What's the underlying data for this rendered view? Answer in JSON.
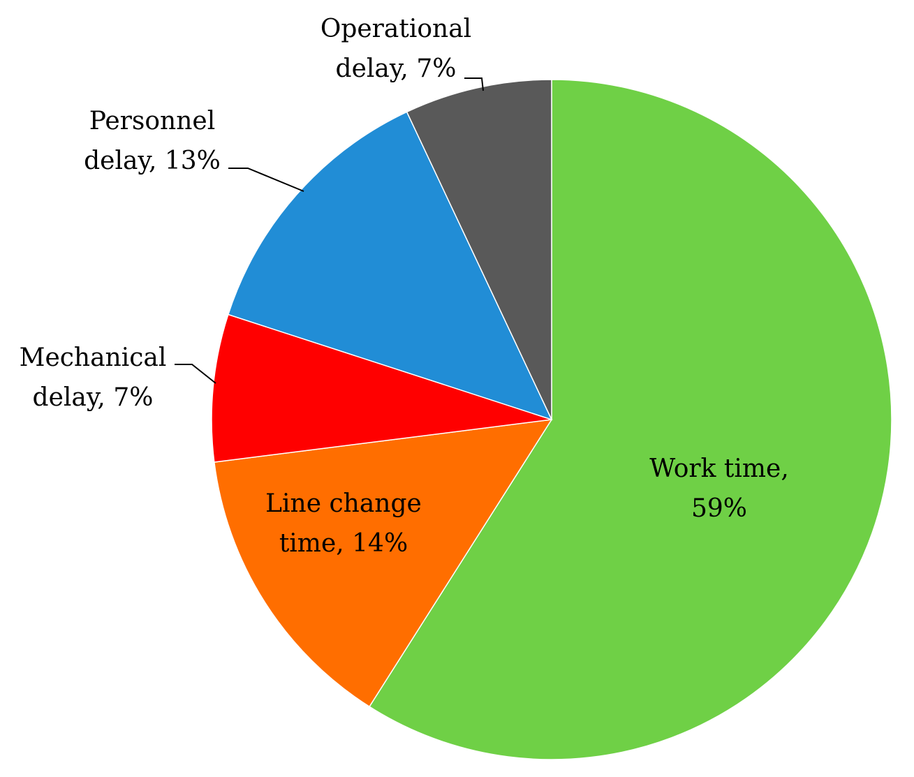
{
  "chart_data": {
    "type": "pie",
    "title": "",
    "slices": [
      {
        "name": "Work time",
        "value": 59,
        "color": "#6fd046",
        "label_lines": [
          "Work time,",
          "59%"
        ]
      },
      {
        "name": "Line change time",
        "value": 14,
        "color": "#ff6e00",
        "label_lines": [
          "Line change",
          "time, 14%"
        ]
      },
      {
        "name": "Mechanical delay",
        "value": 7,
        "color": "#ff0000",
        "label_lines": [
          "Mechanical",
          "delay, 7%"
        ]
      },
      {
        "name": "Personnel delay",
        "value": 13,
        "color": "#218dd6",
        "label_lines": [
          "Personnel",
          "delay, 13%"
        ]
      },
      {
        "name": "Operational delay",
        "value": 7,
        "color": "#595959",
        "label_lines": [
          "Operational",
          "delay, 7%"
        ]
      }
    ],
    "start": "12 o'clock",
    "direction": "clockwise",
    "legend": "none"
  }
}
